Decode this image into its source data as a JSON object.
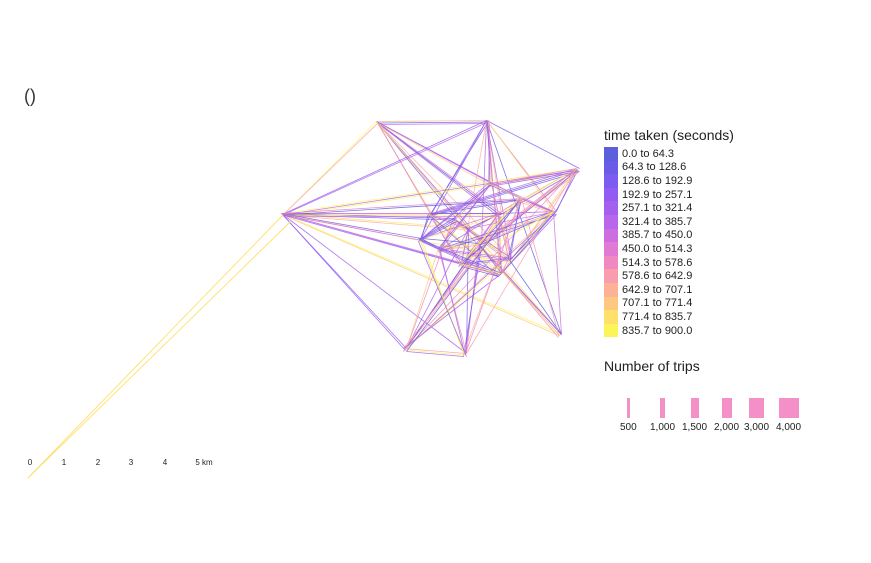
{
  "corner_label": "()",
  "legend_color": {
    "title": "time taken (seconds)",
    "bins": [
      {
        "label": "0.0 to 64.3",
        "color": "#5b5fdc"
      },
      {
        "label": "64.3 to 128.6",
        "color": "#6a5ce8"
      },
      {
        "label": "128.6 to 192.9",
        "color": "#7c5cf0"
      },
      {
        "label": "192.9 to 257.1",
        "color": "#905cf2"
      },
      {
        "label": "257.1 to 321.4",
        "color": "#a45fef"
      },
      {
        "label": "321.4 to 385.7",
        "color": "#b866ea"
      },
      {
        "label": "385.7 to 450.0",
        "color": "#cc6ee0"
      },
      {
        "label": "450.0 to 514.3",
        "color": "#e07ad3"
      },
      {
        "label": "514.3 to 578.6",
        "color": "#f089c2"
      },
      {
        "label": "578.6 to 642.9",
        "color": "#f99cae"
      },
      {
        "label": "642.9 to 707.1",
        "color": "#fdb197"
      },
      {
        "label": "707.1 to 771.4",
        "color": "#fec881"
      },
      {
        "label": "771.4 to 835.7",
        "color": "#fde16a"
      },
      {
        "label": "835.7 to 900.0",
        "color": "#fbf55a"
      }
    ]
  },
  "legend_size": {
    "title": "Number of trips",
    "items": [
      {
        "label": "500",
        "value": 500
      },
      {
        "label": "1,000",
        "value": 1000
      },
      {
        "label": "1,500",
        "value": 1500
      },
      {
        "label": "2,000",
        "value": 2000
      },
      {
        "label": "3,000",
        "value": 3000
      },
      {
        "label": "4,000",
        "value": 4000
      }
    ]
  },
  "scalebar": {
    "ticks": [
      "0",
      "1",
      "2",
      "3",
      "4",
      "5 km"
    ]
  }
}
